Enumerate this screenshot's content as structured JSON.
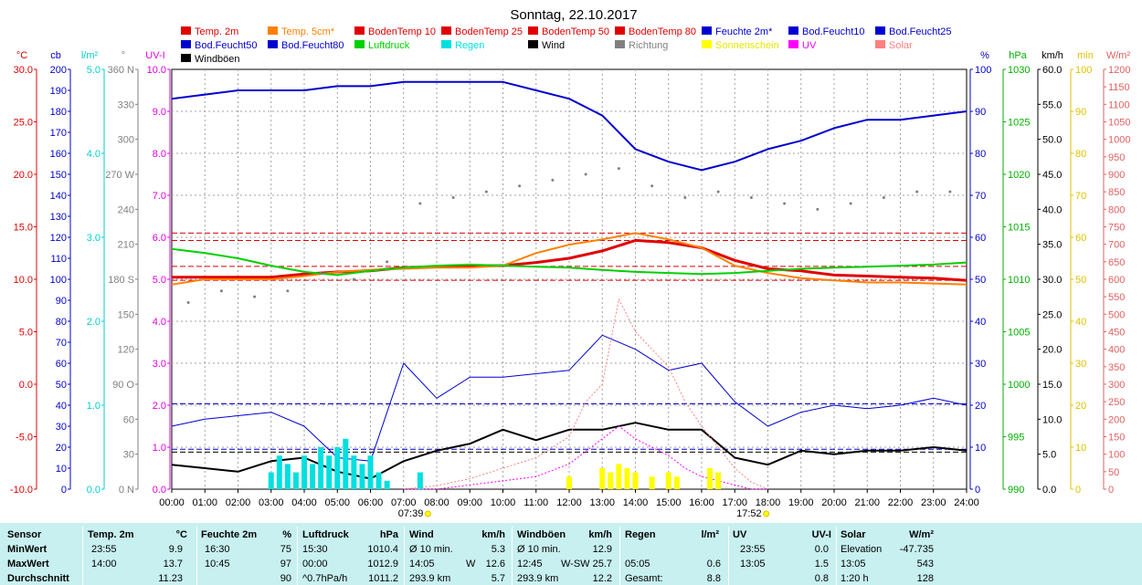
{
  "chart_data": {
    "type": "line",
    "title": "Sonntag, 22.10.2017",
    "x_ticks": [
      "00:00",
      "01:00",
      "02:00",
      "03:00",
      "04:00",
      "05:00",
      "06:00",
      "07:00",
      "08:00",
      "09:00",
      "10:00",
      "11:00",
      "12:00",
      "13:00",
      "14:00",
      "15:00",
      "16:00",
      "17:00",
      "18:00",
      "19:00",
      "20:00",
      "21:00",
      "22:00",
      "23:00",
      "24:00"
    ],
    "sunrise": "07:39",
    "sunset": "17:52",
    "legend": [
      {
        "label": "Temp. 2m",
        "color": "#e00000"
      },
      {
        "label": "Temp. 5cm*",
        "color": "#ff8000"
      },
      {
        "label": "BodenTemp 10",
        "color": "#e00000"
      },
      {
        "label": "BodenTemp 25",
        "color": "#e00000"
      },
      {
        "label": "BodenTemp 50",
        "color": "#e00000"
      },
      {
        "label": "BodenTemp 80",
        "color": "#e00000"
      },
      {
        "label": "Feuchte 2m*",
        "color": "#0000d0"
      },
      {
        "label": "Bod.Feucht10",
        "color": "#0000d0"
      },
      {
        "label": "Bod.Feucht25",
        "color": "#0000d0"
      },
      {
        "label": "Bod.Feucht50",
        "color": "#0000d0"
      },
      {
        "label": "Bod.Feucht80",
        "color": "#0000d0"
      },
      {
        "label": "Luftdruck",
        "color": "#00d000"
      },
      {
        "label": "Regen",
        "color": "#00e0e0"
      },
      {
        "label": "Wind",
        "color": "#000000"
      },
      {
        "label": "Richtung",
        "color": "#808080"
      },
      {
        "label": "Sonnenschein",
        "color": "#ffff00"
      },
      {
        "label": "UV",
        "color": "#ff00ff"
      },
      {
        "label": "Solar",
        "color": "#ff8080"
      },
      {
        "label": "Windböen",
        "color": "#000000"
      }
    ],
    "axes": [
      {
        "unit": "°C",
        "color": "#e00000",
        "min": -10,
        "max": 30,
        "labels": [
          "30.0",
          "25.0",
          "20.0",
          "15.0",
          "10.0",
          "5.0",
          "0.0",
          "-5.0",
          "-10.0"
        ]
      },
      {
        "unit": "cb",
        "color": "#0000d0",
        "min": 0,
        "max": 200,
        "labels": [
          "200",
          "190",
          "180",
          "170",
          "160",
          "150",
          "140",
          "130",
          "120",
          "110",
          "100",
          "90",
          "80",
          "70",
          "60",
          "50",
          "40",
          "30",
          "20",
          "10",
          "0"
        ]
      },
      {
        "unit": "l/m²",
        "color": "#00d0d0",
        "min": 0,
        "max": 5,
        "labels": [
          "5.0",
          "4.0",
          "3.0",
          "2.0",
          "1.0",
          "0.0"
        ]
      },
      {
        "unit": "°",
        "color": "#808080",
        "min": 0,
        "max": 360,
        "labels": [
          "360 N",
          "330",
          "300",
          "270 W",
          "240",
          "210",
          "180 S",
          "150",
          "120",
          "90 O",
          "60",
          "30",
          "0 N"
        ]
      },
      {
        "unit": "UV-I",
        "color": "#e000e0",
        "min": 0,
        "max": 10,
        "labels": [
          "10.0",
          "9.0",
          "8.0",
          "7.0",
          "6.0",
          "5.0",
          "4.0",
          "3.0",
          "2.0",
          "1.0",
          "0.0"
        ]
      },
      {
        "unit": "%",
        "color": "#0000d0",
        "min": 0,
        "max": 100,
        "labels": [
          "100",
          "90",
          "80",
          "70",
          "60",
          "50",
          "40",
          "30",
          "20",
          "10",
          "0"
        ]
      },
      {
        "unit": "hPa",
        "color": "#00b000",
        "min": 990,
        "max": 1030,
        "labels": [
          "1030",
          "1025",
          "1020",
          "1015",
          "1010",
          "1005",
          "1000",
          "995",
          "990"
        ]
      },
      {
        "unit": "km/h",
        "color": "#000000",
        "min": 0,
        "max": 60,
        "labels": [
          "60.0",
          "55.0",
          "50.0",
          "45.0",
          "40.0",
          "35.0",
          "30.0",
          "25.0",
          "20.0",
          "15.0",
          "10.0",
          "5.0",
          "0.0"
        ]
      },
      {
        "unit": "min",
        "color": "#e0c000",
        "min": 0,
        "max": 100,
        "labels": [
          "100",
          "90",
          "80",
          "70",
          "60",
          "50",
          "40",
          "30",
          "20",
          "10",
          "0"
        ]
      },
      {
        "unit": "W/m²",
        "color": "#e06060",
        "min": 0,
        "max": 1200,
        "labels": [
          "1200",
          "1150",
          "1100",
          "1050",
          "1000",
          "950",
          "900",
          "850",
          "800",
          "750",
          "700",
          "650",
          "600",
          "550",
          "500",
          "450",
          "400",
          "350",
          "300",
          "250",
          "200",
          "150",
          "100",
          "50",
          "0"
        ]
      }
    ],
    "reference_lines": [
      {
        "name": "Temp. 2m max",
        "axis": "°C",
        "value": 13.7,
        "color": "#e00000"
      },
      {
        "name": "Temp. 5cm max",
        "axis": "°C",
        "value": 14.4,
        "color": "#e00000"
      },
      {
        "name": "Temp. 2m min",
        "axis": "°C",
        "value": 9.9,
        "color": "#e00000"
      },
      {
        "name": "Temp. 2m avg",
        "axis": "°C",
        "value": 11.23,
        "color": "#e00000"
      },
      {
        "name": "Wind avg",
        "axis": "km/h",
        "value": 5.7,
        "color": "#0000d0"
      },
      {
        "name": "Böen avg",
        "axis": "km/h",
        "value": 12.2,
        "color": "#0000d0"
      },
      {
        "name": "Wind min",
        "axis": "km/h",
        "value": 5.3,
        "color": "#000000"
      }
    ],
    "series": [
      {
        "name": "Temp. 2m",
        "axis": "°C",
        "color": "#e00000",
        "x": [
          0,
          1,
          2,
          3,
          4,
          5,
          6,
          7,
          8,
          9,
          10,
          11,
          12,
          13,
          14,
          15,
          16,
          17,
          18,
          19,
          20,
          21,
          22,
          23,
          24
        ],
        "values": [
          10.2,
          10.2,
          10.2,
          10.2,
          10.5,
          10.7,
          10.8,
          11.1,
          11.2,
          11.3,
          11.3,
          11.6,
          12.0,
          12.7,
          13.7,
          13.5,
          13.0,
          11.8,
          11.0,
          10.8,
          10.4,
          10.3,
          10.2,
          10.1,
          9.9
        ]
      },
      {
        "name": "Temp. 5cm*",
        "axis": "°C",
        "color": "#ff8000",
        "x": [
          0,
          1,
          2,
          3,
          4,
          5,
          6,
          7,
          8,
          9,
          10,
          11,
          12,
          13,
          14,
          15,
          16,
          17,
          18,
          19,
          20,
          21,
          22,
          23,
          24
        ],
        "values": [
          9.5,
          10.0,
          10.0,
          10.0,
          10.3,
          10.7,
          10.9,
          11.0,
          11.1,
          11.1,
          11.3,
          12.5,
          13.3,
          13.8,
          14.4,
          13.8,
          13.0,
          11.3,
          10.6,
          10.1,
          9.9,
          9.7,
          9.7,
          9.6,
          9.5
        ]
      },
      {
        "name": "Feuchte 2m*",
        "axis": "%",
        "color": "#0000d0",
        "x": [
          0,
          1,
          2,
          3,
          4,
          5,
          6,
          7,
          8,
          9,
          10,
          11,
          12,
          13,
          14,
          15,
          16,
          17,
          18,
          19,
          20,
          21,
          22,
          23,
          24
        ],
        "values": [
          93,
          94,
          95,
          95,
          95,
          96,
          96,
          97,
          97,
          97,
          97,
          95,
          93,
          89,
          81,
          78,
          76,
          78,
          81,
          83,
          86,
          88,
          88,
          89,
          90
        ]
      },
      {
        "name": "Luftdruck",
        "axis": "hPa",
        "color": "#00d000",
        "x": [
          0,
          1,
          2,
          3,
          4,
          5,
          6,
          7,
          8,
          9,
          10,
          11,
          12,
          13,
          14,
          15,
          16,
          17,
          18,
          19,
          20,
          21,
          22,
          23,
          24
        ],
        "values": [
          1012.9,
          1012.5,
          1012.0,
          1011.3,
          1010.7,
          1010.4,
          1010.8,
          1011.1,
          1011.3,
          1011.4,
          1011.3,
          1011.2,
          1011.1,
          1010.9,
          1010.7,
          1010.6,
          1010.5,
          1010.6,
          1010.8,
          1011.0,
          1011.1,
          1011.2,
          1011.3,
          1011.4,
          1011.6
        ]
      },
      {
        "name": "Wind",
        "axis": "km/h",
        "color": "#000000",
        "x": [
          0,
          1,
          2,
          3,
          4,
          5,
          6,
          7,
          8,
          9,
          10,
          11,
          12,
          13,
          14,
          15,
          16,
          17,
          18,
          19,
          20,
          21,
          22,
          23,
          24
        ],
        "values": [
          3.5,
          3.0,
          2.5,
          4.0,
          4.5,
          2.5,
          1.5,
          4.0,
          5.5,
          6.5,
          8.5,
          7.0,
          8.5,
          8.5,
          9.5,
          8.5,
          8.5,
          4.5,
          3.5,
          5.5,
          5.0,
          5.5,
          5.5,
          6.0,
          5.5
        ]
      },
      {
        "name": "Windböen",
        "axis": "km/h",
        "color": "#0000d0",
        "x": [
          0,
          1,
          2,
          3,
          4,
          5,
          6,
          7,
          8,
          9,
          10,
          11,
          12,
          13,
          14,
          15,
          16,
          17,
          18,
          19,
          20,
          21,
          22,
          23,
          24
        ],
        "values": [
          9.0,
          10.0,
          10.5,
          11.0,
          9.0,
          4.5,
          4.0,
          18.0,
          13.0,
          16.0,
          16.0,
          16.5,
          17.0,
          22.0,
          20.0,
          17.0,
          18.0,
          12.5,
          9.0,
          11.0,
          12.0,
          11.5,
          12.0,
          13.0,
          12.0
        ]
      },
      {
        "name": "Richtung",
        "axis": "°",
        "color": "#808080",
        "x": [
          0.5,
          1.5,
          2.5,
          3.5,
          4.5,
          5.5,
          6.5,
          7.5,
          8.5,
          9.5,
          10.5,
          11.5,
          12.5,
          13.5,
          14.5,
          15.5,
          16.5,
          17.5,
          18.5,
          19.5,
          20.5,
          21.5,
          22.5,
          23.5
        ],
        "values": [
          160,
          170,
          165,
          170,
          185,
          180,
          195,
          245,
          250,
          255,
          260,
          265,
          270,
          275,
          260,
          250,
          255,
          250,
          245,
          240,
          245,
          250,
          255,
          255
        ]
      },
      {
        "name": "Solar",
        "axis": "W/m²",
        "color": "#ff8080",
        "x": [
          7,
          8,
          9,
          10,
          11,
          12,
          12.5,
          13,
          13.5,
          14,
          14.5,
          15,
          15.5,
          16,
          16.5,
          17,
          17.5,
          18
        ],
        "values": [
          0,
          10,
          30,
          60,
          90,
          150,
          250,
          300,
          543,
          450,
          400,
          350,
          250,
          180,
          120,
          60,
          20,
          0
        ]
      },
      {
        "name": "UV",
        "axis": "UV-I",
        "color": "#ff00ff",
        "x": [
          7,
          8,
          9,
          10,
          11,
          12,
          12.5,
          13,
          13.5,
          14,
          14.5,
          15,
          15.5,
          16,
          16.5,
          17,
          17.5,
          18
        ],
        "values": [
          0,
          0,
          0.1,
          0.2,
          0.3,
          0.6,
          0.9,
          1.2,
          1.5,
          1.2,
          1.0,
          0.8,
          0.5,
          0.3,
          0.2,
          0.1,
          0,
          0
        ]
      },
      {
        "name": "Regen",
        "axis": "l/m²",
        "color": "#00e0e0",
        "type": "bar",
        "x": [
          3.0,
          3.25,
          3.5,
          3.75,
          4.0,
          4.25,
          4.5,
          4.75,
          5.0,
          5.25,
          5.5,
          5.75,
          6.0,
          6.25,
          6.5,
          7.5
        ],
        "values": [
          0.2,
          0.4,
          0.3,
          0.2,
          0.4,
          0.3,
          0.5,
          0.4,
          0.5,
          0.6,
          0.4,
          0.3,
          0.4,
          0.2,
          0.1,
          0.2
        ]
      },
      {
        "name": "Sonnenschein",
        "axis": "min",
        "color": "#ffff00",
        "type": "bar",
        "x": [
          12.0,
          13.0,
          13.25,
          13.5,
          13.75,
          14.0,
          14.5,
          15.0,
          15.25,
          16.25,
          16.5
        ],
        "values": [
          3,
          5,
          4,
          6,
          5,
          4,
          3,
          4,
          3,
          5,
          4
        ]
      }
    ]
  },
  "stats": {
    "headers": [
      "Sensor",
      "Temp. 2m",
      "°C",
      "Feuchte 2m",
      "%",
      "Luftdruck",
      "hPa",
      "Wind",
      "km/h",
      "Windböen",
      "km/h",
      "Regen",
      "l/m²",
      "UV",
      "UV-I",
      "Solar",
      "W/m²"
    ],
    "rows": [
      {
        "label": "MinWert",
        "temp_time": "23:55",
        "temp_val": "9.9",
        "hum_time": "16:30",
        "hum_val": "75",
        "press_time": "15:30",
        "press_val": "1010.4",
        "wind_a": "Ø 10 min.",
        "wind_b": "",
        "wind_val": "5.3",
        "gust_a": "Ø 10 min.",
        "gust_b": "",
        "gust_val": "12.9",
        "rain_a": "",
        "rain_val": "",
        "uv_time": "23:55",
        "uv_val": "0.0",
        "solar_a": "Elevation",
        "solar_val": "-47.735"
      },
      {
        "label": "MaxWert",
        "temp_time": "14:00",
        "temp_val": "13.7",
        "hum_time": "10:45",
        "hum_val": "97",
        "press_time": "00:00",
        "press_val": "1012.9",
        "wind_a": "14:05",
        "wind_b": "W",
        "wind_val": "12.6",
        "gust_a": "12:45",
        "gust_b": "W-SW",
        "gust_val": "25.7",
        "rain_a": "05:05",
        "rain_val": "0.6",
        "uv_time": "13:05",
        "uv_val": "1.5",
        "solar_a": "13:05",
        "solar_val": "543"
      },
      {
        "label": "Durchschnitt",
        "temp_time": "",
        "temp_val": "11.23",
        "hum_time": "",
        "hum_val": "90",
        "press_time": "^0.7hPa/h",
        "press_val": "1011.2",
        "wind_a": "293.9 km",
        "wind_b": "",
        "wind_val": "5.7",
        "gust_a": "293.9 km",
        "gust_b": "",
        "gust_val": "12.2",
        "rain_a": "Gesamt:",
        "rain_val": "8.8",
        "uv_time": "",
        "uv_val": "0.8",
        "solar_a": "1:20 h",
        "solar_val": "128"
      }
    ]
  }
}
